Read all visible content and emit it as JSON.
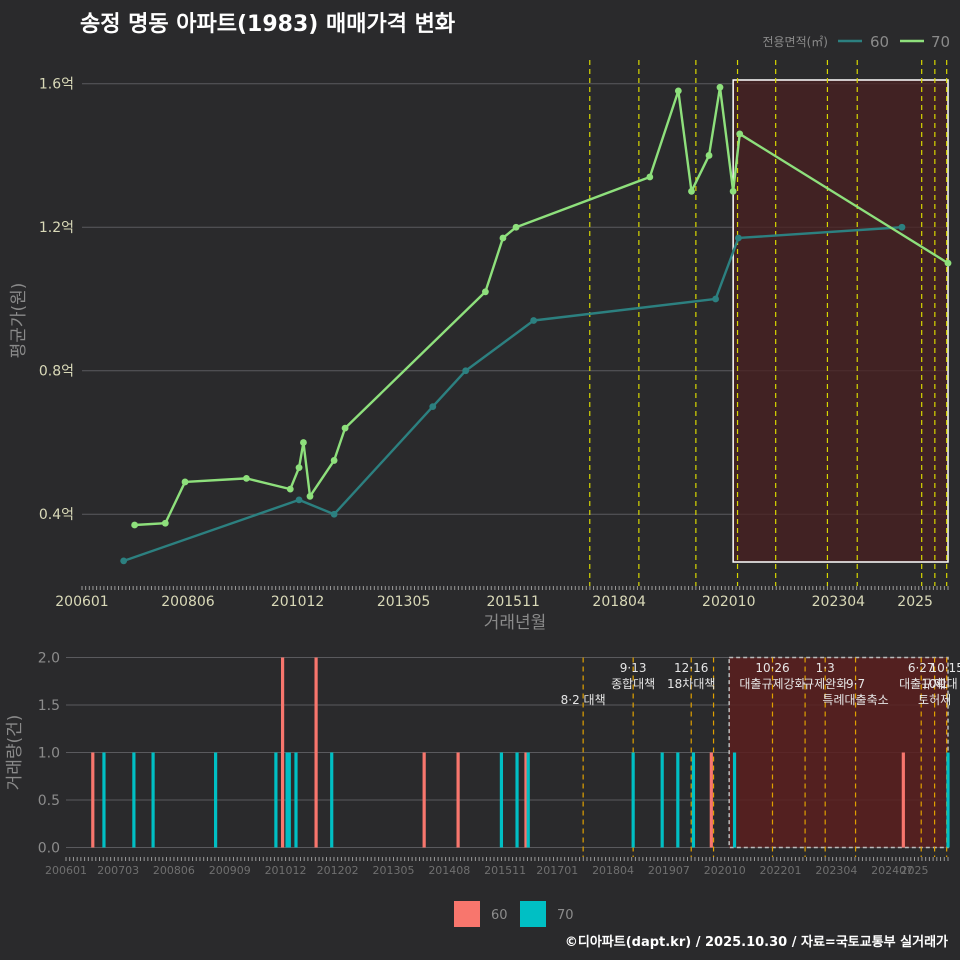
{
  "title": "송정 명동 아파트(1983) 매매가격 변화",
  "credit": "©디아파트(dapt.kr) / 2025.10.30 / 자료=국토교통부 실거래가",
  "colors": {
    "background": "#2a2a2c",
    "grid": "#5a5a5e",
    "axis_text": "#d9d9b8",
    "axis_title": "#8a8a8a",
    "line_60": "#2c8080",
    "line_70": "#8ee07c",
    "bar_60": "#f8766d",
    "bar_70": "#00bfc4",
    "policy_top": "#d7d700",
    "policy_bottom": "#e0a000",
    "highlight_fill": "#4a2020",
    "highlight_border": "#ffffff"
  },
  "chart_data": [
    {
      "type": "line",
      "title": "송정 명동 아파트(1983) 매매가격 변화",
      "xlabel": "거래년월",
      "ylabel": "평균가(원)",
      "legend_title": "전용면적(㎡)",
      "legend_position": "top-right",
      "x_ticks": [
        "200601",
        "200806",
        "201012",
        "201305",
        "201511",
        "201804",
        "202010",
        "202304",
        "2025"
      ],
      "y_ticks": [
        "0.4억",
        "0.8억",
        "1.2억",
        "1.6억"
      ],
      "y_tick_values": [
        0.4,
        0.8,
        1.2,
        1.6
      ],
      "xlim": [
        2006.0,
        2025.75
      ],
      "ylim": [
        0.2,
        1.68
      ],
      "highlight_range": [
        2020.85,
        2025.75
      ],
      "policy_dates": [
        2017.58,
        2018.7,
        2020.0,
        2020.95,
        2021.82,
        2023.0,
        2023.68,
        2025.15,
        2025.45,
        2025.72
      ],
      "series": [
        {
          "name": "60",
          "x": [
            2006.95,
            2010.95,
            2011.75,
            2014.0,
            2014.75,
            2016.3,
            2020.45,
            2020.97,
            2024.7
          ],
          "values": [
            0.27,
            0.44,
            0.4,
            0.7,
            0.8,
            0.94,
            1.0,
            1.17,
            1.2
          ]
        },
        {
          "name": "70",
          "x": [
            2007.2,
            2007.9,
            2008.35,
            2009.75,
            2010.75,
            2010.95,
            2011.05,
            2011.2,
            2011.75,
            2012.0,
            2015.2,
            2015.6,
            2015.9,
            2018.95,
            2019.6,
            2019.9,
            2020.3,
            2020.55,
            2020.85,
            2021.0,
            2025.75
          ],
          "values": [
            0.37,
            0.375,
            0.49,
            0.5,
            0.47,
            0.53,
            0.6,
            0.45,
            0.55,
            0.64,
            1.02,
            1.17,
            1.2,
            1.34,
            1.58,
            1.3,
            1.4,
            1.59,
            1.3,
            1.46,
            1.1
          ]
        }
      ]
    },
    {
      "type": "bar",
      "ylabel": "거래량(건)",
      "x_ticks": [
        "200601",
        "200703",
        "200806",
        "200909",
        "201012",
        "201202",
        "201305",
        "201408",
        "201511",
        "201701",
        "201804",
        "201907",
        "202010",
        "202201",
        "202304",
        "202407",
        "2025"
      ],
      "y_ticks": [
        "0.0",
        "0.5",
        "1.0",
        "1.5",
        "2.0"
      ],
      "y_tick_values": [
        0.0,
        0.5,
        1.0,
        1.5,
        2.0
      ],
      "xlim": [
        2006.0,
        2025.75
      ],
      "ylim": [
        -0.1,
        2.1
      ],
      "highlight_range": [
        2020.85,
        2025.75
      ],
      "policy_dates": [
        2017.58,
        2018.7,
        2020.0,
        2020.5,
        2021.82,
        2022.55,
        2023.0,
        2023.68,
        2025.15,
        2025.45,
        2025.72
      ],
      "policy_labels": [
        {
          "date": 2017.58,
          "lines": [
            "8·2 대책"
          ],
          "row": 2
        },
        {
          "date": 2018.7,
          "lines": [
            "9·13",
            "종합대책"
          ],
          "row": 0
        },
        {
          "date": 2020.0,
          "lines": [
            "12·16",
            "18차대책"
          ],
          "row": 0
        },
        {
          "date": 2021.82,
          "lines": [
            "10·26",
            "대출규제강화"
          ],
          "row": 0
        },
        {
          "date": 2023.0,
          "lines": [
            "1·3",
            "규제완화"
          ],
          "row": 0
        },
        {
          "date": 2023.68,
          "lines": [
            "9·7",
            "특례대출축소"
          ],
          "row": 1
        },
        {
          "date": 2025.15,
          "lines": [
            "6·27",
            "대출규제"
          ],
          "row": 0
        },
        {
          "date": 2025.45,
          "lines": [
            "10·1",
            "토허제"
          ],
          "row": 1
        },
        {
          "date": 2025.72,
          "lines": [
            "10·15",
            "확대"
          ],
          "row": 0
        }
      ],
      "series": [
        {
          "name": "60",
          "x": [
            2006.6,
            2010.85,
            2011.6,
            2014.02,
            2014.78,
            2016.3,
            2020.45,
            2024.75
          ],
          "values": [
            1,
            2,
            2,
            1,
            1,
            1,
            1,
            1
          ]
        },
        {
          "name": "70",
          "x": [
            2006.85,
            2007.52,
            2007.95,
            2009.35,
            2010.7,
            2010.95,
            2011.0,
            2011.15,
            2011.95,
            2015.75,
            2016.1,
            2016.35,
            2018.7,
            2019.35,
            2019.7,
            2020.05,
            2020.97,
            2025.75
          ],
          "values": [
            1,
            1,
            1,
            1,
            1,
            1,
            1,
            1,
            1,
            1,
            1,
            1,
            1,
            1,
            1,
            1,
            1,
            1
          ]
        }
      ]
    }
  ]
}
